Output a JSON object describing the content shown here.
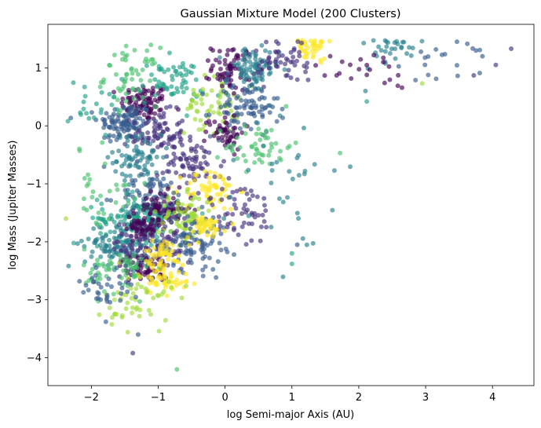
{
  "chart_data": {
    "type": "scatter",
    "title": "Gaussian Mixture Model (200 Clusters)",
    "xlabel": "log Semi-major Axis (AU)",
    "ylabel": "log Mass (Jupiter Masses)",
    "xlim": [
      -2.65,
      4.62
    ],
    "ylim": [
      -4.48,
      1.75
    ],
    "xticks": [
      -2,
      -1,
      0,
      1,
      2,
      3,
      4
    ],
    "yticks": [
      -4,
      -3,
      -2,
      -1,
      0,
      1
    ],
    "xtick_labels": [
      "−2",
      "−1",
      "0",
      "1",
      "2",
      "3",
      "4"
    ],
    "ytick_labels": [
      "−4",
      "−3",
      "−2",
      "−1",
      "0",
      "1"
    ],
    "grid": false,
    "legend": "none",
    "colormap": "viridis",
    "marker_alpha": 0.65,
    "colors": [
      "#440154",
      "#46327e",
      "#365c8d",
      "#277f8e",
      "#1fa187",
      "#4ac16d",
      "#a0da39",
      "#fde725"
    ],
    "clusters": [
      {
        "center": [
          -1.2,
          0.4
        ],
        "spread": [
          0.18,
          0.16
        ],
        "count": 90,
        "color_index": 0
      },
      {
        "center": [
          -1.5,
          0.05
        ],
        "spread": [
          0.2,
          0.18
        ],
        "count": 110,
        "color_index": 2
      },
      {
        "center": [
          -1.0,
          -0.15
        ],
        "spread": [
          0.2,
          0.2
        ],
        "count": 80,
        "color_index": 1
      },
      {
        "center": [
          -1.3,
          -0.55
        ],
        "spread": [
          0.18,
          0.2
        ],
        "count": 70,
        "color_index": 3
      },
      {
        "center": [
          -0.8,
          0.75
        ],
        "spread": [
          0.25,
          0.2
        ],
        "count": 60,
        "color_index": 4
      },
      {
        "center": [
          -1.4,
          0.85
        ],
        "spread": [
          0.2,
          0.25
        ],
        "count": 55,
        "color_index": 5
      },
      {
        "center": [
          -0.5,
          -0.65
        ],
        "spread": [
          0.25,
          0.2
        ],
        "count": 70,
        "color_index": 1
      },
      {
        "center": [
          -0.2,
          0.35
        ],
        "spread": [
          0.2,
          0.25
        ],
        "count": 60,
        "color_index": 6
      },
      {
        "center": [
          0.1,
          1.0
        ],
        "spread": [
          0.15,
          0.2
        ],
        "count": 70,
        "color_index": 0
      },
      {
        "center": [
          0.4,
          0.95
        ],
        "spread": [
          0.2,
          0.2
        ],
        "count": 80,
        "color_index": 3
      },
      {
        "center": [
          0.3,
          0.3
        ],
        "spread": [
          0.25,
          0.25
        ],
        "count": 90,
        "color_index": 2
      },
      {
        "center": [
          0.0,
          -0.1
        ],
        "spread": [
          0.15,
          0.15
        ],
        "count": 50,
        "color_index": 0
      },
      {
        "center": [
          0.5,
          -0.35
        ],
        "spread": [
          0.25,
          0.2
        ],
        "count": 50,
        "color_index": 5
      },
      {
        "center": [
          -0.2,
          -1.1
        ],
        "spread": [
          0.2,
          0.18
        ],
        "count": 60,
        "color_index": 7
      },
      {
        "center": [
          0.2,
          -1.5
        ],
        "spread": [
          0.3,
          0.3
        ],
        "count": 60,
        "color_index": 1
      },
      {
        "center": [
          -1.1,
          -1.25
        ],
        "spread": [
          0.25,
          0.2
        ],
        "count": 90,
        "color_index": 2
      },
      {
        "center": [
          -1.3,
          -1.6
        ],
        "spread": [
          0.3,
          0.2
        ],
        "count": 130,
        "color_index": 4
      },
      {
        "center": [
          -0.9,
          -1.45
        ],
        "spread": [
          0.2,
          0.15
        ],
        "count": 80,
        "color_index": 0
      },
      {
        "center": [
          -0.6,
          -1.6
        ],
        "spread": [
          0.2,
          0.2
        ],
        "count": 80,
        "color_index": 6
      },
      {
        "center": [
          -1.6,
          -2.05
        ],
        "spread": [
          0.25,
          0.2
        ],
        "count": 100,
        "color_index": 3
      },
      {
        "center": [
          -1.1,
          -2.05
        ],
        "spread": [
          0.3,
          0.25
        ],
        "count": 120,
        "color_index": 1
      },
      {
        "center": [
          -0.5,
          -2.0
        ],
        "spread": [
          0.25,
          0.25
        ],
        "count": 90,
        "color_index": 2
      },
      {
        "center": [
          -1.2,
          -2.45
        ],
        "spread": [
          0.18,
          0.12
        ],
        "count": 60,
        "color_index": 0
      },
      {
        "center": [
          -0.9,
          -2.65
        ],
        "spread": [
          0.2,
          0.12
        ],
        "count": 50,
        "color_index": 7
      },
      {
        "center": [
          -1.6,
          -2.5
        ],
        "spread": [
          0.25,
          0.2
        ],
        "count": 60,
        "color_index": 5
      },
      {
        "center": [
          -1.3,
          -3.05
        ],
        "spread": [
          0.25,
          0.25
        ],
        "count": 50,
        "color_index": 6
      },
      {
        "center": [
          -1.8,
          -2.8
        ],
        "spread": [
          0.2,
          0.2
        ],
        "count": 35,
        "color_index": 2
      },
      {
        "center": [
          -0.9,
          -2.2
        ],
        "spread": [
          0.15,
          0.12
        ],
        "count": 50,
        "color_index": 7
      },
      {
        "center": [
          -0.3,
          -1.75
        ],
        "spread": [
          0.15,
          0.1
        ],
        "count": 40,
        "color_index": 7
      },
      {
        "center": [
          -1.3,
          -1.75
        ],
        "spread": [
          0.15,
          0.1
        ],
        "count": 40,
        "color_index": 0
      },
      {
        "center": [
          1.3,
          1.35
        ],
        "spread": [
          0.12,
          0.1
        ],
        "count": 40,
        "color_index": 7
      },
      {
        "center": [
          0.9,
          1.1
        ],
        "spread": [
          0.25,
          0.2
        ],
        "count": 50,
        "color_index": 1
      },
      {
        "center": [
          2.5,
          1.3
        ],
        "spread": [
          0.3,
          0.15
        ],
        "count": 30,
        "color_index": 3
      },
      {
        "center": [
          2.1,
          1.0
        ],
        "spread": [
          0.4,
          0.2
        ],
        "count": 22,
        "color_index": 0
      },
      {
        "center": [
          3.4,
          1.15
        ],
        "spread": [
          0.5,
          0.2
        ],
        "count": 20,
        "color_index": 2
      },
      {
        "center": [
          1.0,
          -1.0
        ],
        "spread": [
          0.4,
          0.5
        ],
        "count": 35,
        "color_index": 3
      },
      {
        "center": [
          -1.9,
          -1.2
        ],
        "spread": [
          0.25,
          0.4
        ],
        "count": 30,
        "color_index": 5
      },
      {
        "center": [
          -2.0,
          0.3
        ],
        "spread": [
          0.3,
          0.3
        ],
        "count": 20,
        "color_index": 4
      }
    ],
    "outliers": [
      {
        "x": -0.72,
        "y": -4.2,
        "color_index": 5
      },
      {
        "x": -1.38,
        "y": -3.92,
        "color_index": 1
      },
      {
        "x": -1.3,
        "y": -3.6,
        "color_index": 2
      },
      {
        "x": -2.35,
        "y": 0.08,
        "color_index": 4
      },
      {
        "x": -2.38,
        "y": -1.6,
        "color_index": 6
      },
      {
        "x": 1.0,
        "y": -2.2,
        "color_index": 4
      },
      {
        "x": 1.0,
        "y": -2.38,
        "color_index": 4
      },
      {
        "x": 1.72,
        "y": -0.47,
        "color_index": 5
      },
      {
        "x": 4.28,
        "y": 1.33,
        "color_index": 1
      },
      {
        "x": 3.85,
        "y": 1.2,
        "color_index": 2
      },
      {
        "x": 4.05,
        "y": 1.05,
        "color_index": 1
      },
      {
        "x": 3.72,
        "y": 0.87,
        "color_index": 1
      },
      {
        "x": 2.95,
        "y": 0.73,
        "color_index": 6
      },
      {
        "x": 2.1,
        "y": 0.6,
        "color_index": 3
      },
      {
        "x": 2.12,
        "y": 0.42,
        "color_index": 4
      },
      {
        "x": 1.08,
        "y": -2.05,
        "color_index": 2
      }
    ]
  }
}
